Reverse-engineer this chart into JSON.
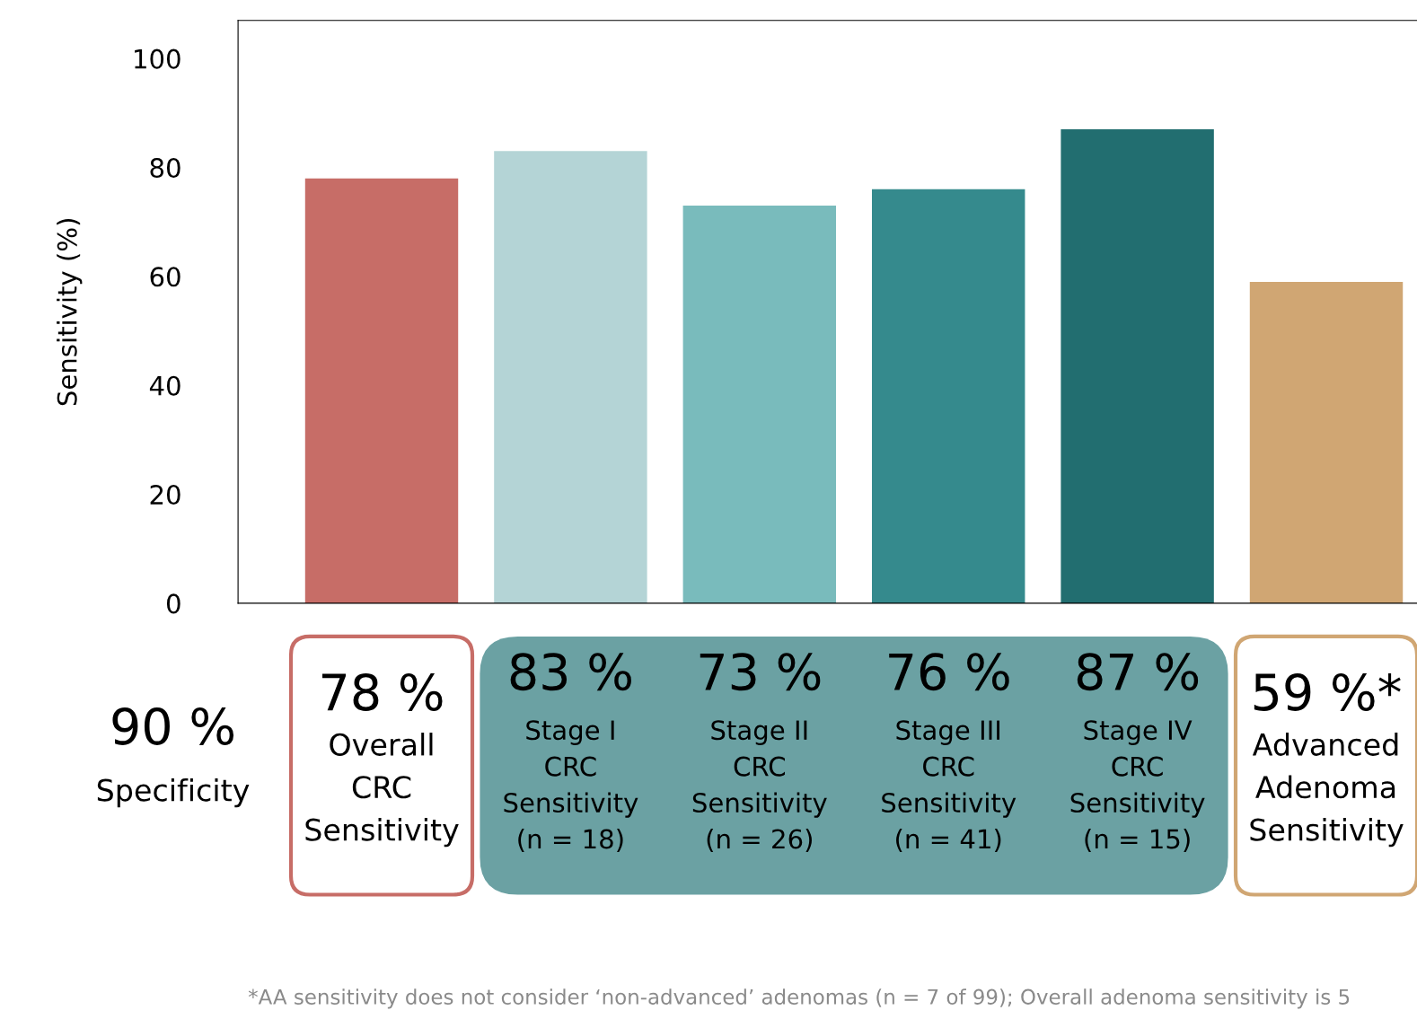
{
  "chart_data": {
    "type": "bar",
    "ylabel": "Sensitivity (%)",
    "categories": [
      "Overall\nCRC\nSensitivity",
      "Stage I\nCRC\nSensitivity\n(n = 18)",
      "Stage II\nCRC\nSensitivity\n(n = 26)",
      "Stage III\nCRC\nSensitivity\n(n = 41)",
      "Stage IV\nCRC\nSensitivity\n(n = 15)",
      "Advanced\nAdenoma\nSensitivity"
    ],
    "values": [
      78,
      83,
      73,
      76,
      87,
      59
    ],
    "value_labels": [
      "78 %",
      "83 %",
      "73 %",
      "76 %",
      "87 %",
      "59 %*"
    ],
    "colors": [
      "#c76d67",
      "#b4d4d6",
      "#79bbbc",
      "#358a8d",
      "#226e70",
      "#d0a673"
    ],
    "ylim": [
      0,
      107
    ],
    "yticks": [
      0,
      20,
      40,
      60,
      80,
      100
    ],
    "grid": false,
    "legend": false,
    "annotations": [
      "90 %",
      "Specificity",
      "*AA sensitivity does not consider ‘non-advanced’ adenomas (n = 7 of 99); Overall adenoma sensitivity is 5"
    ]
  }
}
